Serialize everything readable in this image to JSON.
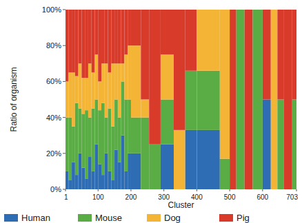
{
  "chart_data": {
    "type": "histogram",
    "stacked": true,
    "grid": false,
    "y_label": "Ratio of organism",
    "x_label": "Cluster",
    "bins": [
      1,
      10,
      20,
      30,
      40,
      50,
      60,
      70,
      80,
      90,
      100,
      110,
      120,
      130,
      140,
      150,
      160,
      170,
      180,
      190,
      200,
      230,
      255,
      290,
      330,
      365,
      400,
      470,
      500,
      520,
      545,
      570,
      600,
      625,
      645,
      665,
      690,
      703
    ],
    "xlim": [
      1,
      703
    ],
    "xticks": [
      1,
      100,
      200,
      300,
      400,
      500,
      600,
      703
    ],
    "ylim": [
      0,
      100
    ],
    "yticks": [
      {
        "value": 0,
        "label": "0%"
      },
      {
        "value": 20,
        "label": "20%"
      },
      {
        "value": 40,
        "label": "40%"
      },
      {
        "value": 60,
        "label": "60%"
      },
      {
        "value": 80,
        "label": "80%"
      },
      {
        "value": 100,
        "label": "100%"
      }
    ],
    "legend": "bottom",
    "series": [
      {
        "name": "Human",
        "color": "#2e6db4",
        "values": [
          10,
          5,
          15,
          8,
          20,
          12,
          6,
          18,
          10,
          25,
          14,
          8,
          20,
          10,
          5,
          22,
          15,
          30,
          10,
          20,
          20,
          0,
          0,
          25,
          0,
          33,
          33,
          0,
          0,
          0,
          0,
          0,
          50,
          0,
          0,
          0,
          0
        ]
      },
      {
        "name": "Mouse",
        "color": "#5aac44",
        "values": [
          30,
          35,
          20,
          40,
          25,
          30,
          38,
          22,
          35,
          25,
          30,
          40,
          20,
          35,
          30,
          28,
          25,
          30,
          40,
          30,
          20,
          40,
          25,
          25,
          0,
          33,
          33,
          17,
          0,
          100,
          0,
          100,
          0,
          0,
          50,
          0,
          50
        ]
      },
      {
        "name": "Dog",
        "color": "#f4b537",
        "values": [
          20,
          25,
          30,
          15,
          25,
          20,
          18,
          30,
          20,
          25,
          16,
          22,
          30,
          20,
          35,
          20,
          30,
          10,
          25,
          30,
          40,
          10,
          0,
          25,
          33,
          0,
          34,
          83,
          0,
          0,
          0,
          0,
          0,
          100,
          0,
          0,
          0
        ]
      },
      {
        "name": "Pig",
        "color": "#d93b2b",
        "values": [
          40,
          35,
          35,
          37,
          30,
          38,
          38,
          30,
          35,
          25,
          40,
          30,
          30,
          35,
          30,
          30,
          30,
          30,
          25,
          20,
          20,
          50,
          75,
          25,
          67,
          34,
          0,
          0,
          100,
          0,
          100,
          0,
          50,
          0,
          50,
          100,
          50
        ]
      }
    ]
  }
}
